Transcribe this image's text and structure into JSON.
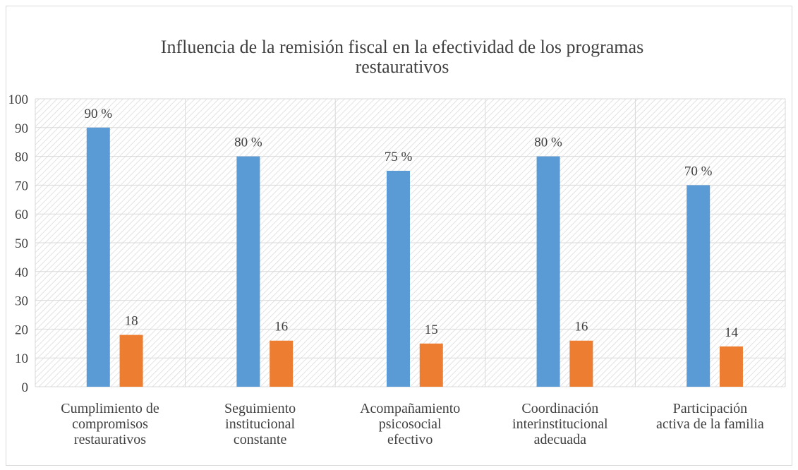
{
  "chart_data": {
    "type": "bar",
    "title": "Influencia de la remisión fiscal en la efectividad de los programas\nrestaurativos",
    "categories": [
      "Cumplimiento de\ncompromisos\nrestaurativos",
      "Seguimiento\ninstitucional\nconstante",
      "Acompañamiento\npsicosocial\nefectivo",
      "Coordinación\ninterinstitucional\nadecuada",
      "Participación\nactiva de la familia"
    ],
    "series": [
      {
        "color": "#5b9bd5",
        "values": [
          90,
          80,
          75,
          80,
          70
        ],
        "value_labels": [
          "90 %",
          "80 %",
          "75 %",
          "80 %",
          "70 %"
        ]
      },
      {
        "color": "#ed7d31",
        "values": [
          18,
          16,
          15,
          16,
          14
        ]
      }
    ],
    "ylim": [
      0,
      100
    ],
    "yticks": [
      0,
      10,
      20,
      30,
      40,
      50,
      60,
      70,
      80,
      90,
      100
    ],
    "grid": true
  }
}
